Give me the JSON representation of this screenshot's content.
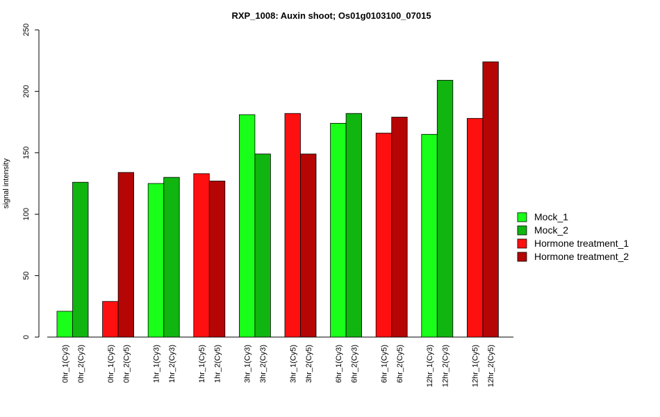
{
  "chart_data": {
    "type": "bar",
    "title": "RXP_1008: Auxin shoot; Os01g0103100_07015",
    "ylabel": "signal intensity",
    "xlabel": "",
    "ylim": [
      0,
      250
    ],
    "yticks": [
      0,
      50,
      100,
      150,
      200,
      250
    ],
    "grid": false,
    "legend_position": "right",
    "legend": [
      {
        "name": "Mock_1",
        "color": "#19ff19"
      },
      {
        "name": "Mock_2",
        "color": "#10b510"
      },
      {
        "name": "Hormone treatment_1",
        "color": "#ff1010"
      },
      {
        "name": "Hormone treatment_2",
        "color": "#b50505"
      }
    ],
    "groups": [
      {
        "bars": [
          {
            "label": "0hr_1(Cy3)",
            "value": 21,
            "series": 0
          },
          {
            "label": "0hr_2(Cy3)",
            "value": 126,
            "series": 1
          }
        ]
      },
      {
        "bars": [
          {
            "label": "0hr_1(Cy5)",
            "value": 29,
            "series": 2
          },
          {
            "label": "0hr_2(Cy5)",
            "value": 134,
            "series": 3
          }
        ]
      },
      {
        "bars": [
          {
            "label": "1hr_1(Cy3)",
            "value": 125,
            "series": 0
          },
          {
            "label": "1hr_2(Cy3)",
            "value": 130,
            "series": 1
          }
        ]
      },
      {
        "bars": [
          {
            "label": "1hr_1(Cy5)",
            "value": 133,
            "series": 2
          },
          {
            "label": "1hr_2(Cy5)",
            "value": 127,
            "series": 3
          }
        ]
      },
      {
        "bars": [
          {
            "label": "3hr_1(Cy3)",
            "value": 181,
            "series": 0
          },
          {
            "label": "3hr_2(Cy3)",
            "value": 149,
            "series": 1
          }
        ]
      },
      {
        "bars": [
          {
            "label": "3hr_1(Cy5)",
            "value": 182,
            "series": 2
          },
          {
            "label": "3hr_2(Cy5)",
            "value": 149,
            "series": 3
          }
        ]
      },
      {
        "bars": [
          {
            "label": "6hr_1(Cy3)",
            "value": 174,
            "series": 0
          },
          {
            "label": "6hr_2(Cy3)",
            "value": 182,
            "series": 1
          }
        ]
      },
      {
        "bars": [
          {
            "label": "6hr_1(Cy5)",
            "value": 166,
            "series": 2
          },
          {
            "label": "6hr_2(Cy5)",
            "value": 179,
            "series": 3
          }
        ]
      },
      {
        "bars": [
          {
            "label": "12hr_1(Cy3)",
            "value": 165,
            "series": 0
          },
          {
            "label": "12hr_2(Cy3)",
            "value": 209,
            "series": 1
          }
        ]
      },
      {
        "bars": [
          {
            "label": "12hr_1(Cy5)",
            "value": 178,
            "series": 2
          },
          {
            "label": "12hr_2(Cy5)",
            "value": 224,
            "series": 3
          }
        ]
      }
    ]
  }
}
